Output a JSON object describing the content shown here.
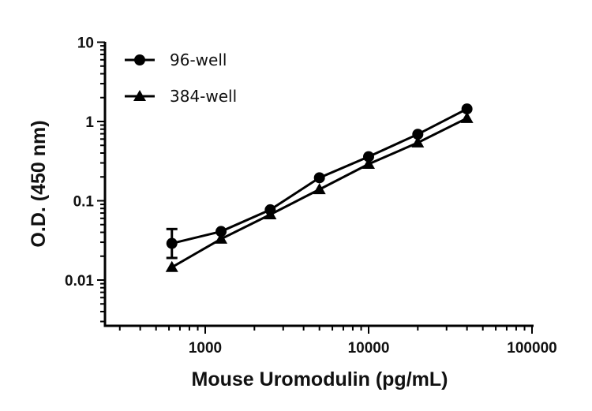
{
  "chart_data": {
    "type": "line",
    "xlabel": "Mouse Uromodulin (pg/mL)",
    "ylabel": "O.D. (450 nm)",
    "x_scale": "log",
    "y_scale": "log",
    "xlim": [
      243,
      100000
    ],
    "ylim": [
      0.0025,
      10
    ],
    "x_ticks": [
      "1000",
      "10000",
      "100000"
    ],
    "y_ticks": [
      "10",
      "1",
      "0.1",
      "0.01"
    ],
    "grid": false,
    "legend_position": "top-left",
    "x": [
      625,
      1250,
      2500,
      5000,
      10000,
      20000,
      40000
    ],
    "series": [
      {
        "name": "96-well",
        "marker": "circle",
        "values": [
          0.029,
          0.041,
          0.077,
          0.195,
          0.36,
          0.69,
          1.44
        ],
        "error": [
          {
            "index": 0,
            "low": 0.019,
            "high": 0.044
          }
        ]
      },
      {
        "name": "384-well",
        "marker": "triangle",
        "values": [
          0.0145,
          0.033,
          0.067,
          0.139,
          0.29,
          0.54,
          1.1
        ]
      }
    ],
    "color": "#000000"
  }
}
